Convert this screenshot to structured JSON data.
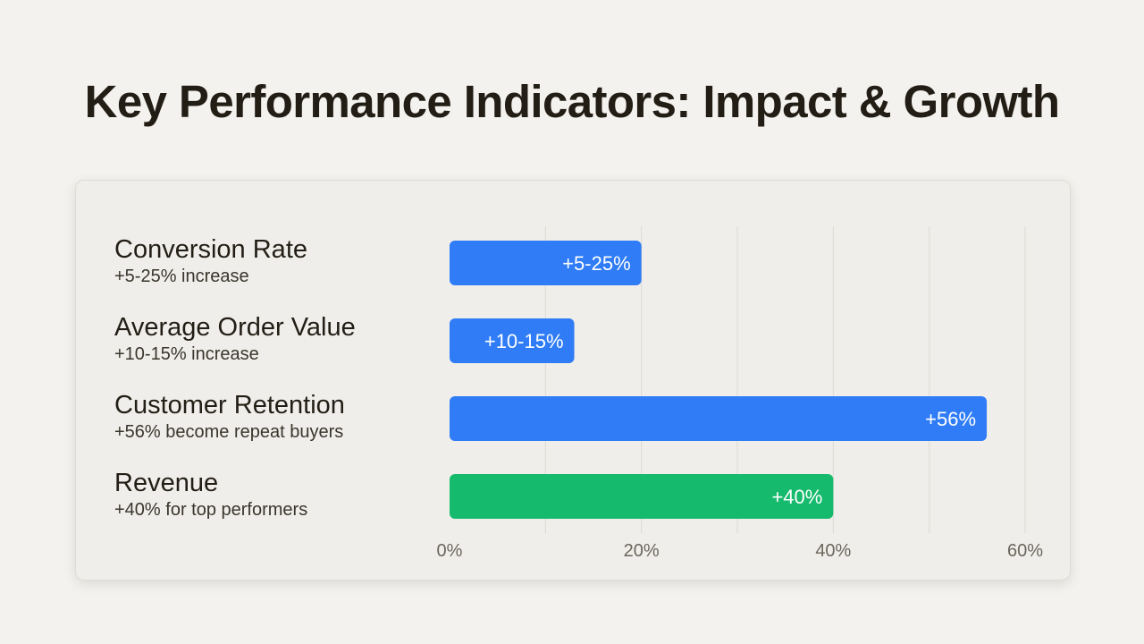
{
  "page": {
    "title": "Key Performance Indicators: Impact & Growth"
  },
  "kpis": [
    {
      "name": "Conversion Rate",
      "sub": "+5-25% increase"
    },
    {
      "name": "Average Order Value",
      "sub": "+10-15% increase"
    },
    {
      "name": "Customer Retention",
      "sub": "+56% become repeat buyers"
    },
    {
      "name": "Revenue",
      "sub": "+40% for top performers"
    }
  ],
  "colors": {
    "blue": "#2f7cf6",
    "green": "#16ba6c",
    "grid": "#dcdad4",
    "tick": "#6b665c"
  },
  "chart_data": {
    "type": "bar",
    "orientation": "horizontal",
    "title": "Key Performance Indicators: Impact & Growth",
    "categories": [
      "Conversion Rate",
      "Average Order Value",
      "Customer Retention",
      "Revenue"
    ],
    "values": [
      20,
      13,
      56,
      40
    ],
    "data_labels": [
      "+5-25%",
      "+10-15%",
      "+56%",
      "+40%"
    ],
    "bar_colors": [
      "blue",
      "blue",
      "blue",
      "green"
    ],
    "xlim": [
      0,
      60
    ],
    "x_ticks": [
      0,
      20,
      40,
      60
    ],
    "x_tick_labels": [
      "0%",
      "20%",
      "40%",
      "60%"
    ],
    "minor_gridlines": [
      10,
      30,
      50
    ],
    "xlabel": "",
    "ylabel": "",
    "grid": true
  }
}
